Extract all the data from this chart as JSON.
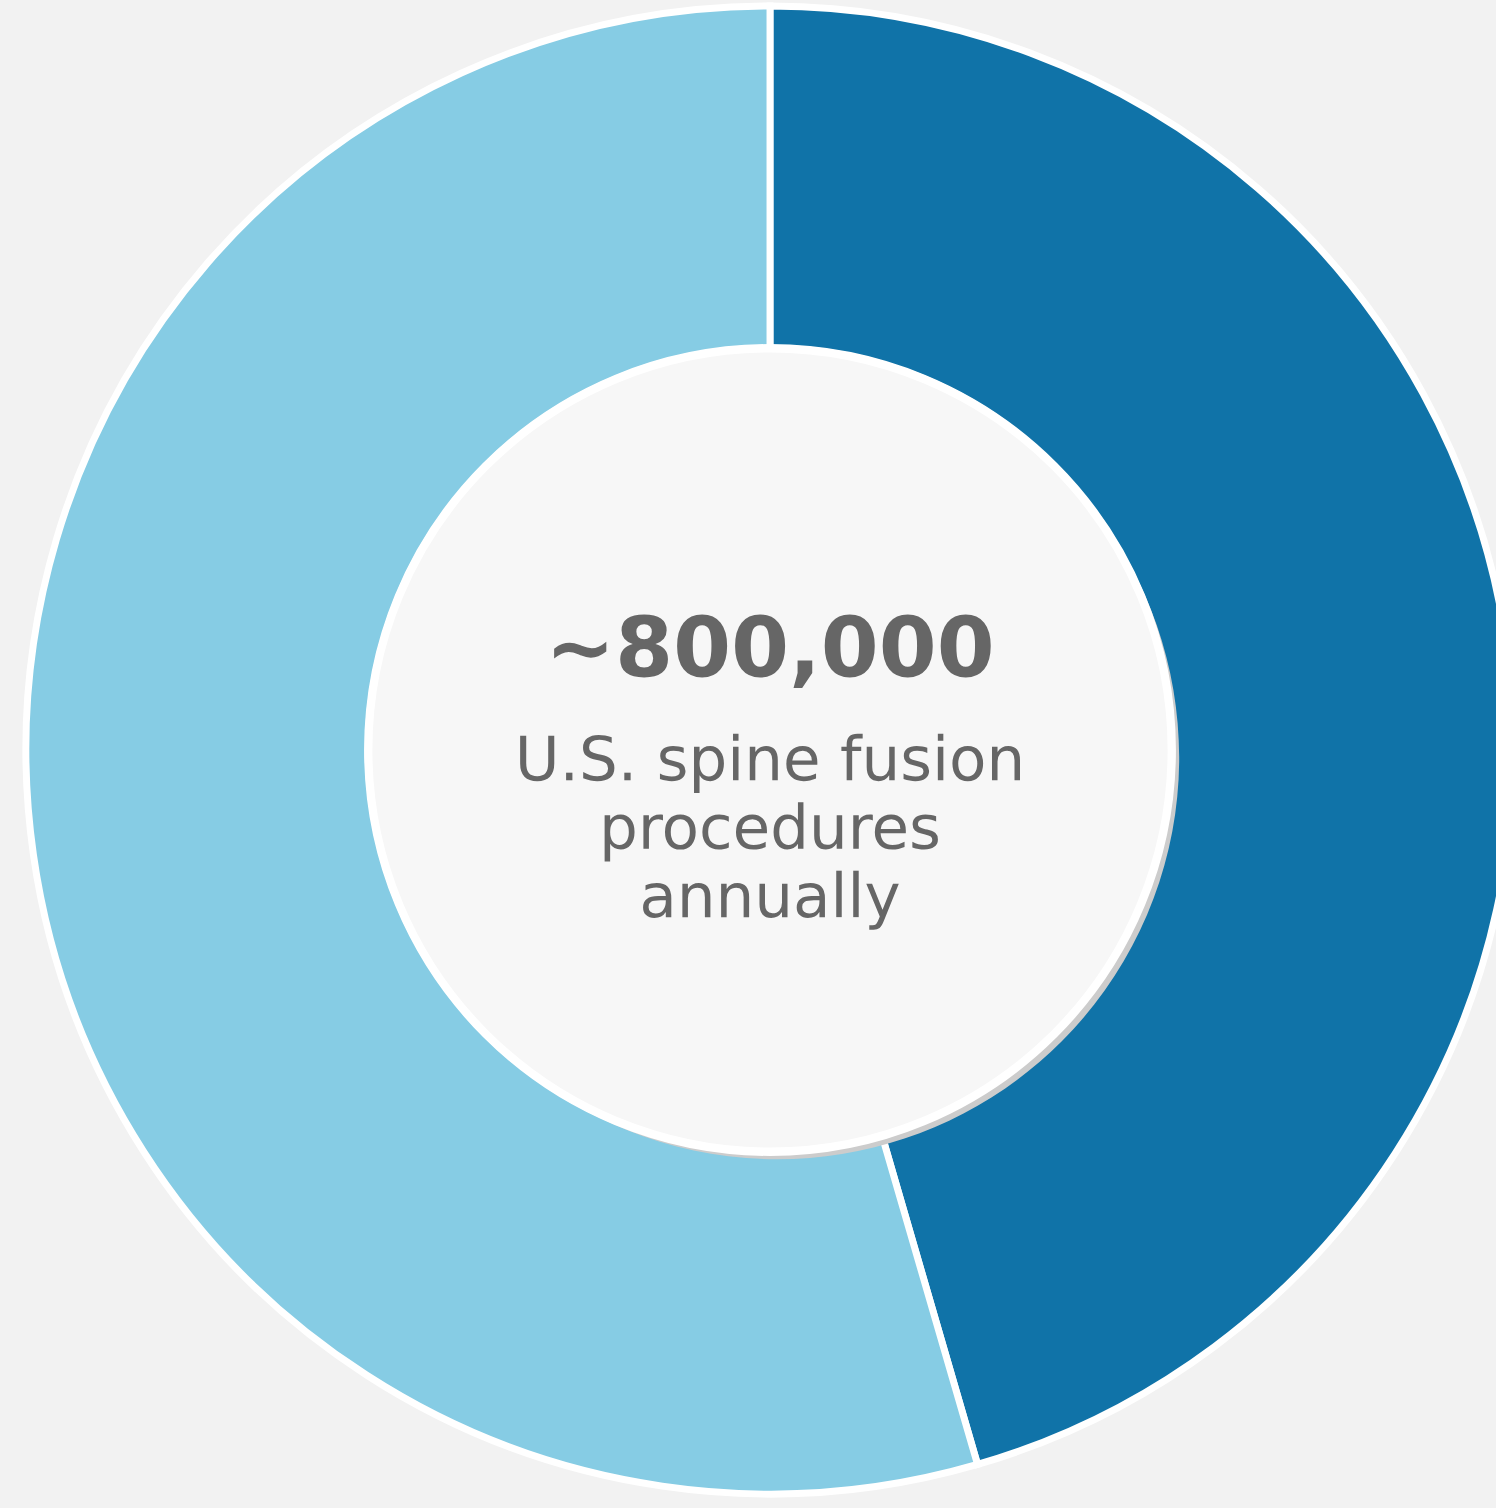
{
  "chart_data": {
    "type": "donut",
    "categories": [
      null,
      null
    ],
    "values": [
      45.5,
      54.5
    ],
    "colors": [
      "#1073a8",
      "#86cce4"
    ],
    "annotations": [
      "~800,000",
      "U.S. spine fusion\nprocedures\nannually"
    ]
  }
}
